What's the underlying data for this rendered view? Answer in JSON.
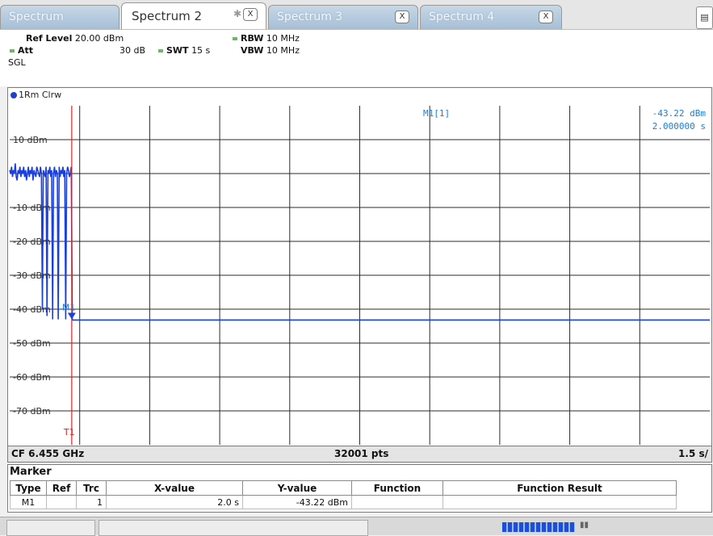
{
  "tabs": [
    {
      "label": "Spectrum",
      "active": false
    },
    {
      "label": "Spectrum 2",
      "active": true
    },
    {
      "label": "Spectrum 3",
      "active": false
    },
    {
      "label": "Spectrum 4",
      "active": false
    }
  ],
  "settings": {
    "ref_level_label": "Ref Level",
    "ref_level_value": "20.00 dBm",
    "att_label": "Att",
    "att_value": "30 dB",
    "swt_label": "SWT",
    "swt_value": "15 s",
    "rbw_label": "RBW",
    "rbw_value": "10 MHz",
    "vbw_label": "VBW",
    "vbw_value": "10 MHz",
    "mode": "SGL"
  },
  "diagram": {
    "trace_label": "1Rm Clrw",
    "marker_readout_name": "M1[1]",
    "marker_readout_level": "-43.22 dBm",
    "marker_readout_time": "2.000000 s",
    "marker_label": "M1",
    "trigger_label": "T1",
    "y_ticks": [
      "10 dBm",
      "-10 dBm",
      "-20 dBm",
      "-30 dBm",
      "-40 dBm",
      "-50 dBm",
      "-60 dBm",
      "-70 dBm"
    ],
    "trace_color": "#1a3fe0",
    "trigger_color": "#e02020",
    "marker_text_color": "#1a7fd6"
  },
  "footer": {
    "cf": "CF 6.455 GHz",
    "points": "32001 pts",
    "span": "1.5 s/"
  },
  "marker_table": {
    "title": "Marker",
    "headers": [
      "Type",
      "Ref",
      "Trc",
      "X-value",
      "Y-value",
      "Function",
      "Function Result"
    ],
    "rows": [
      {
        "type": "M1",
        "ref": "",
        "trc": "1",
        "x_value": "2.0 s",
        "y_value": "-43.22 dBm",
        "function": "",
        "function_result": ""
      }
    ]
  },
  "chart_data": {
    "type": "line",
    "title": "",
    "xlabel": "",
    "ylabel": "",
    "ylim": [
      -80,
      20
    ],
    "x_divisions": 10,
    "grid": true,
    "series": [
      {
        "x": [
          0,
          0.02,
          0.04,
          0.06,
          0.08,
          0.1,
          0.12,
          0.14,
          0.16,
          0.18,
          0.2,
          0.22,
          0.24,
          0.26,
          0.28,
          0.3,
          0.32,
          0.34,
          0.36,
          0.38,
          0.4,
          0.42,
          0.44,
          0.46,
          0.48,
          0.5,
          0.52,
          0.54,
          0.56,
          0.58,
          0.6,
          0.62,
          0.64,
          0.66,
          0.68,
          0.7,
          0.72,
          0.74,
          0.76,
          0.78,
          0.8,
          0.82,
          0.84,
          0.86,
          0.88,
          0.9,
          0.92,
          0.94,
          0.96,
          0.98,
          1.0,
          1.02,
          1.04,
          1.06,
          1.08,
          1.1,
          1.12,
          1.14,
          1.16,
          1.18,
          1.2,
          1.22,
          1.24,
          1.26,
          1.28,
          1.3,
          1.32,
          1.33,
          1.34,
          15.0
        ],
        "y": [
          1,
          0,
          2,
          -1,
          1,
          0,
          3,
          -1,
          -2,
          1,
          0,
          2,
          -1,
          1,
          0,
          2,
          -1,
          1,
          -2,
          0,
          2,
          -1,
          1,
          0,
          2,
          -2,
          1,
          0,
          -1,
          2,
          1,
          0,
          -1,
          2,
          0,
          -40,
          1,
          0,
          -1,
          2,
          -42,
          1,
          0,
          2,
          -1,
          1,
          -43,
          0,
          2,
          -1,
          1,
          0,
          -43,
          2,
          -1,
          1,
          0,
          2,
          -1,
          1,
          -43,
          0,
          2,
          1,
          -1,
          0,
          2,
          -20,
          -43.2,
          -43.2
        ]
      }
    ],
    "marker": {
      "name": "M1",
      "x": 2.0,
      "y": -43.22
    },
    "trigger": {
      "name": "T1",
      "x": 1.33
    }
  }
}
